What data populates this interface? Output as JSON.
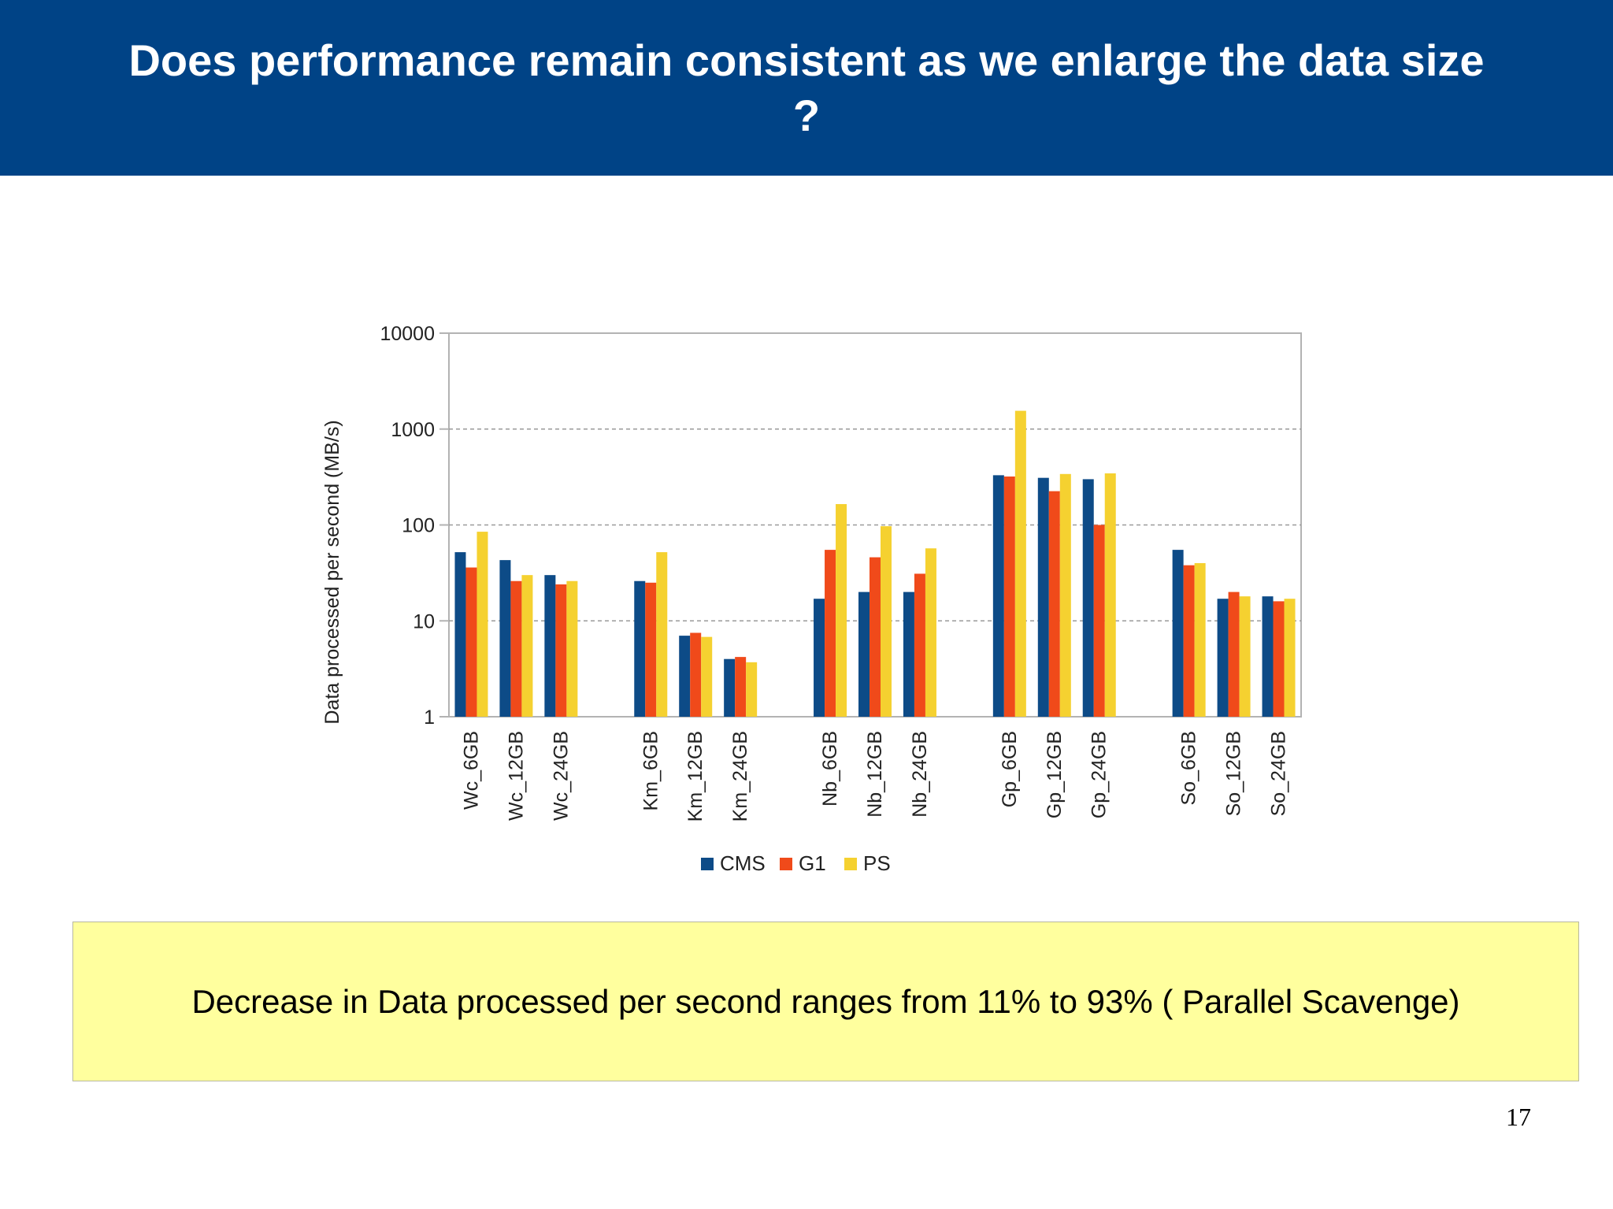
{
  "slide": {
    "title": "Does performance remain consistent as we enlarge the data size ?",
    "callout": "Decrease in Data processed per second ranges from 11% to 93% ( Parallel Scavenge)",
    "page_number": "17"
  },
  "chart_data": {
    "type": "bar",
    "ylabel": "Data processed per second (MB/s)",
    "xlabel": "",
    "yscale": "log",
    "ylim": [
      1,
      10000
    ],
    "yticks": [
      "1",
      "10",
      "100",
      "1000",
      "10000"
    ],
    "grid": true,
    "legend_position": "bottom",
    "groups": [
      [
        "Wc_6GB",
        "Wc_12GB",
        "Wc_24GB"
      ],
      [
        "Km_6GB",
        "Km_12GB",
        "Km_24GB"
      ],
      [
        "Nb_6GB",
        "Nb_12GB",
        "Nb_24GB"
      ],
      [
        "Gp_6GB",
        "Gp_12GB",
        "Gp_24GB"
      ],
      [
        "So_6GB",
        "So_12GB",
        "So_24GB"
      ]
    ],
    "categories": [
      "Wc_6GB",
      "Wc_12GB",
      "Wc_24GB",
      "Km_6GB",
      "Km_12GB",
      "Km_24GB",
      "Nb_6GB",
      "Nb_12GB",
      "Nb_24GB",
      "Gp_6GB",
      "Gp_12GB",
      "Gp_24GB",
      "So_6GB",
      "So_12GB",
      "So_24GB"
    ],
    "series": [
      {
        "name": "CMS",
        "color": "#0d4b87",
        "values": [
          52,
          43,
          30,
          26,
          7,
          4,
          17,
          20,
          20,
          330,
          310,
          300,
          55,
          17,
          18
        ]
      },
      {
        "name": "G1",
        "color": "#f04a1a",
        "values": [
          36,
          26,
          24,
          25,
          7.5,
          4.2,
          55,
          46,
          31,
          320,
          225,
          100,
          38,
          20,
          16
        ]
      },
      {
        "name": "PS",
        "color": "#f5d130",
        "values": [
          85,
          30,
          26,
          52,
          6.8,
          3.7,
          165,
          97,
          57,
          1550,
          340,
          345,
          40,
          18,
          17
        ]
      }
    ]
  }
}
